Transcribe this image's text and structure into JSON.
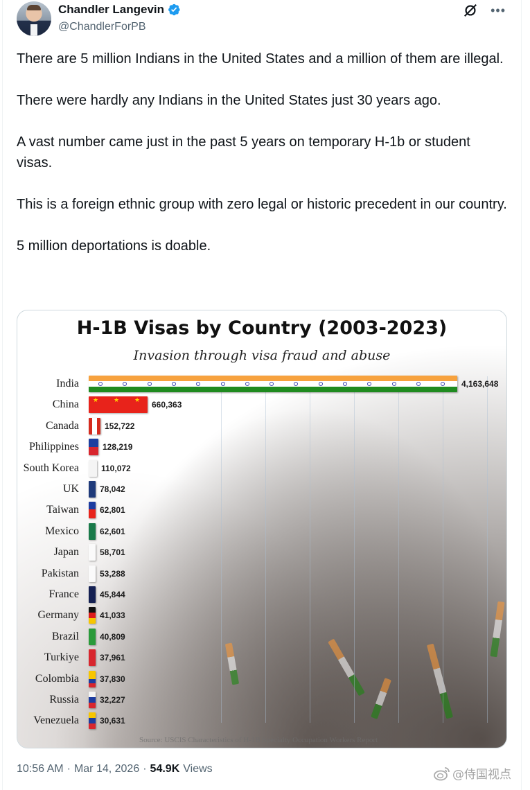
{
  "author": {
    "display_name": "Chandler Langevin",
    "handle": "@ChandlerForPB",
    "verified": true,
    "avatar_icon": "profile-photo"
  },
  "header_actions": {
    "grok_icon": "grok-icon",
    "more_label": "•••"
  },
  "tweet": {
    "paragraphs": [
      "There are 5 million Indians in the United States and a million of them are illegal.",
      "There were hardly any Indians in the United States just 30 years ago.",
      "A vast number came just in the past 5 years on temporary H-1b or student visas.",
      "This is a foreign ethnic group with zero legal or historic precedent in our country.",
      "5 million deportations is doable."
    ]
  },
  "media": {
    "source_text": "Source: USCIS Characteristics of H-1B Specialty Occupation Workers Report"
  },
  "chart_data": {
    "type": "bar",
    "orientation": "horizontal",
    "title": "H-1B Visas by Country (2003-2023)",
    "subtitle": "Invasion through visa fraud and abuse",
    "xlabel": "",
    "ylabel": "",
    "grid": true,
    "legend": "none",
    "categories": [
      "India",
      "China",
      "Canada",
      "Philippines",
      "South Korea",
      "UK",
      "Taiwan",
      "Mexico",
      "Japan",
      "Pakistan",
      "France",
      "Germany",
      "Brazil",
      "Turkiye",
      "Colombia",
      "Russia",
      "Venezuela"
    ],
    "values": [
      4163648,
      660363,
      152722,
      128219,
      110072,
      78042,
      62801,
      62601,
      58701,
      53288,
      45844,
      41033,
      40809,
      37961,
      37830,
      32227,
      30631
    ],
    "value_labels": [
      "4,163,648",
      "660,363",
      "152,722",
      "128,219",
      "110,072",
      "78,042",
      "62,801",
      "62,601",
      "58,701",
      "53,288",
      "45,844",
      "41,033",
      "40,809",
      "37,961",
      "37,830",
      "32,227",
      "30,631"
    ],
    "bar_fills": [
      "flag-india",
      "flag-china",
      "flag-canada",
      "flag-philippines",
      "flag-south-korea",
      "flag-uk",
      "flag-taiwan",
      "flag-mexico",
      "flag-japan",
      "flag-pakistan",
      "flag-france",
      "flag-germany",
      "flag-brazil",
      "flag-turkiye",
      "flag-colombia",
      "flag-russia",
      "flag-venezuela"
    ],
    "source": "Source: USCIS Characteristics of H-1B Specialty Occupation Workers Report"
  },
  "footer": {
    "time": "10:56 AM",
    "separator": "·",
    "date": "Mar 14, 2026",
    "views_count": "54.9K",
    "views_label": "Views"
  },
  "watermark": {
    "text": "@侍国视点",
    "icon": "weibo-icon"
  },
  "colors": {
    "text_primary": "#0f1419",
    "text_secondary": "#536471",
    "verified_blue": "#1d9bf0",
    "border": "#cfd9de"
  }
}
